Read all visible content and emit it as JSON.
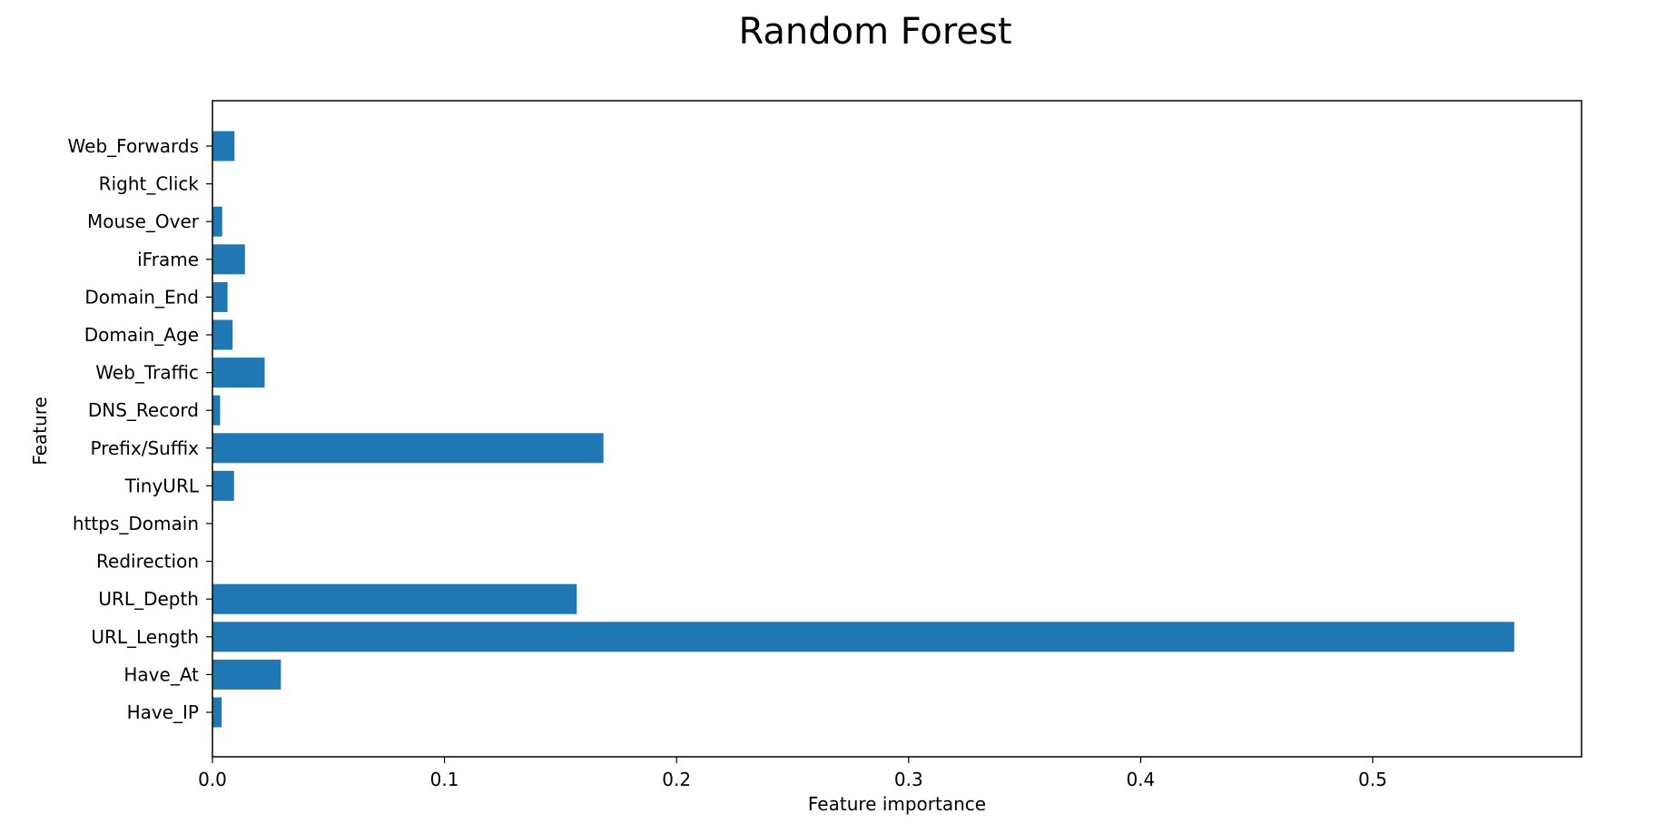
{
  "chart_data": {
    "type": "bar",
    "orientation": "horizontal",
    "title": "Random Forest",
    "xlabel": "Feature importance",
    "ylabel": "Feature",
    "xlim": [
      0.0,
      0.59
    ],
    "xticks": [
      0.0,
      0.1,
      0.2,
      0.3,
      0.4,
      0.5
    ],
    "xtick_labels": [
      "0.0",
      "0.1",
      "0.2",
      "0.3",
      "0.4",
      "0.5"
    ],
    "grid": false,
    "bar_color": "#1f77b4",
    "categories": [
      "Have_IP",
      "Have_At",
      "URL_Length",
      "URL_Depth",
      "Redirection",
      "https_Domain",
      "TinyURL",
      "Prefix/Suffix",
      "DNS_Record",
      "Web_Traffic",
      "Domain_Age",
      "Domain_End",
      "iFrame",
      "Mouse_Over",
      "Right_Click",
      "Web_Forwards"
    ],
    "values": [
      0.004,
      0.0295,
      0.561,
      0.157,
      0.0,
      0.0,
      0.0093,
      0.1685,
      0.0033,
      0.0225,
      0.0087,
      0.0065,
      0.014,
      0.0042,
      0.0,
      0.0095
    ]
  }
}
